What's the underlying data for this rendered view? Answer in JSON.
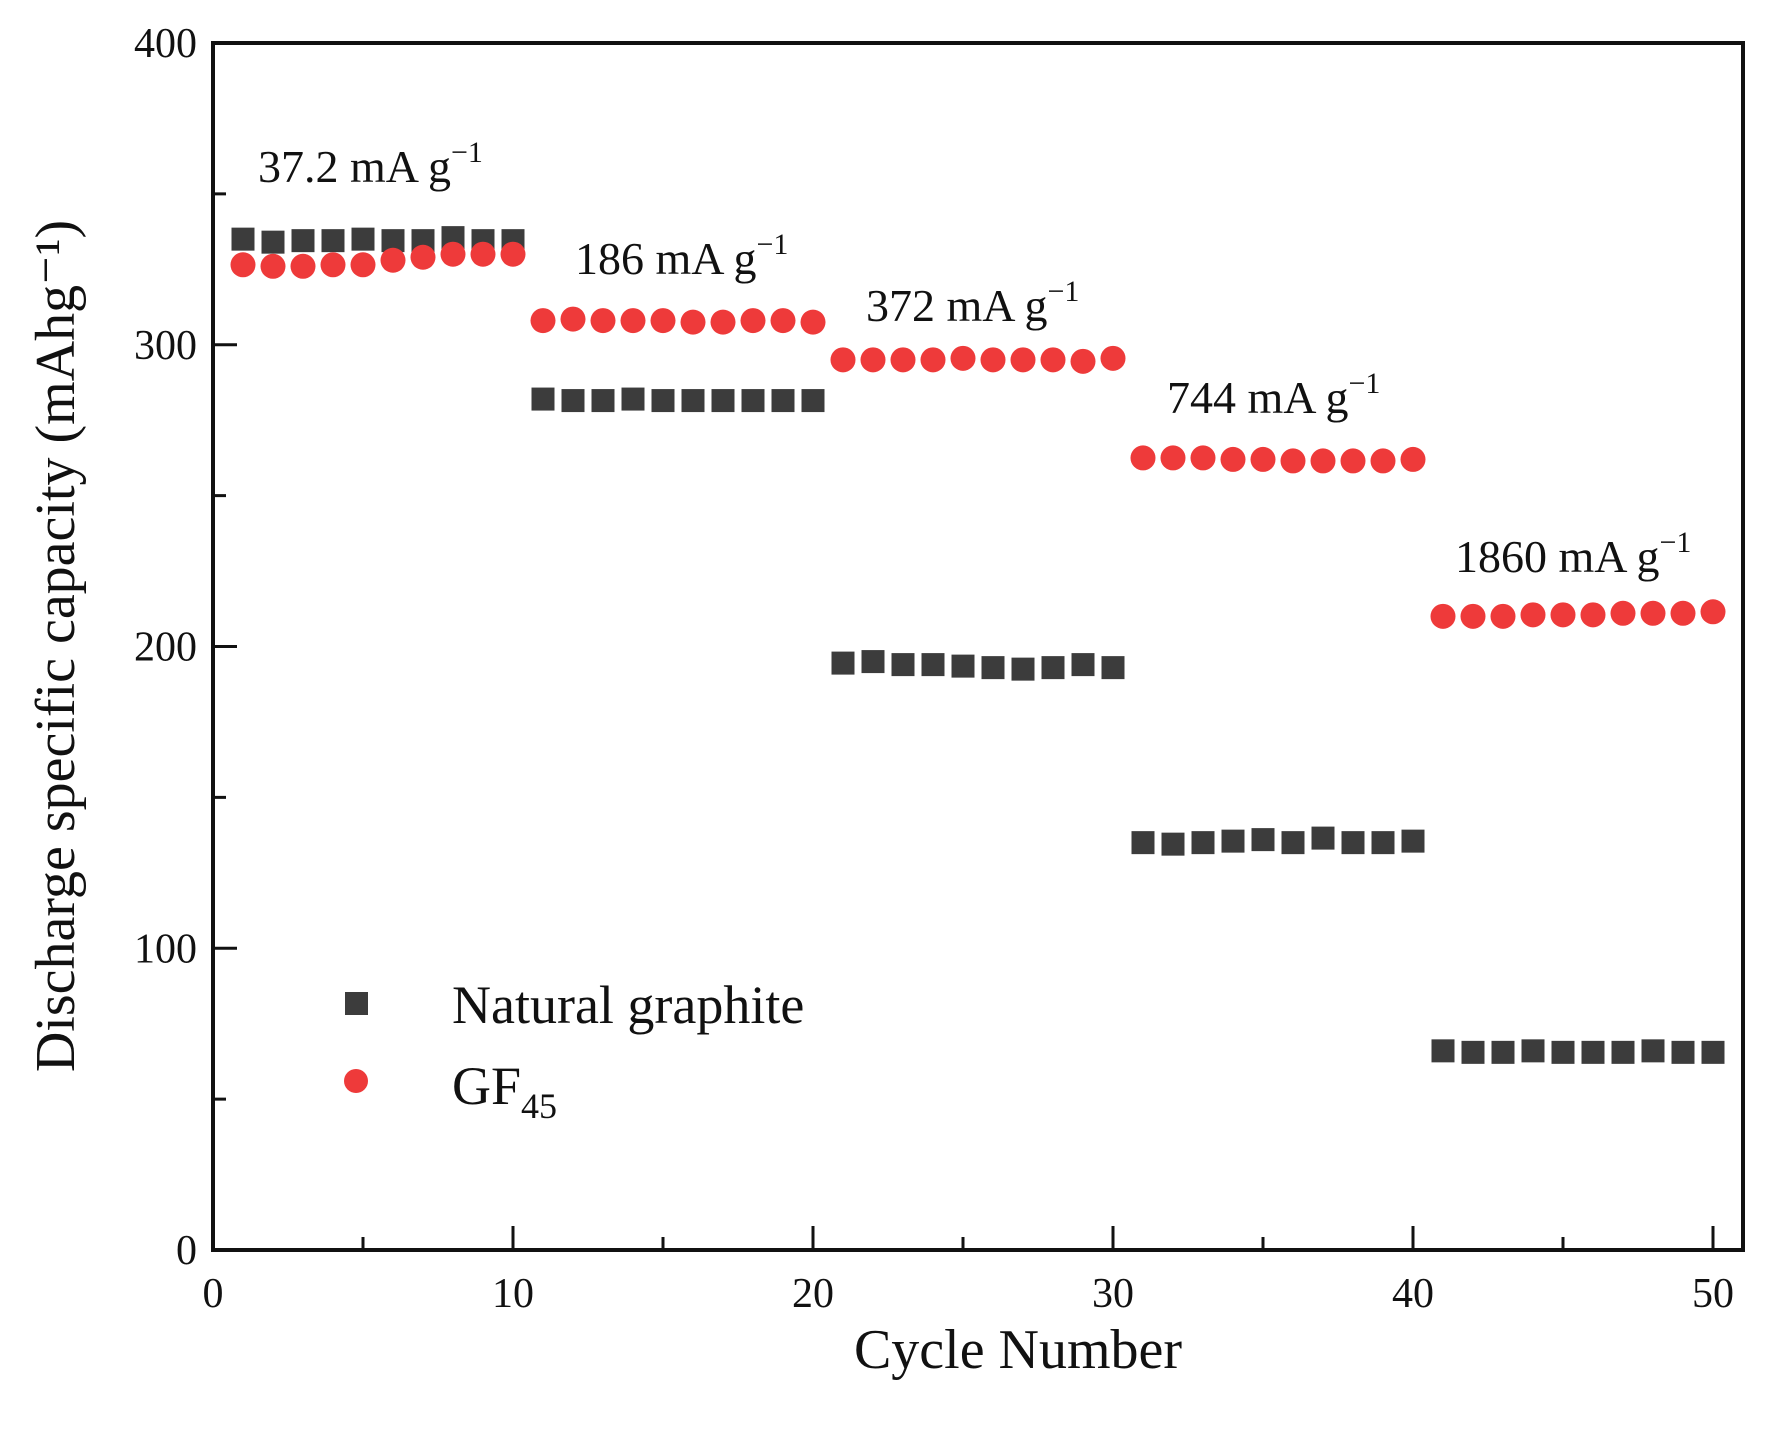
{
  "chart_data": {
    "type": "scatter",
    "xlabel": "Cycle Number",
    "ylabel": "Discharge specific capacity (mAhg⁻¹)",
    "xlim": [
      0,
      51
    ],
    "ylim": [
      0,
      400
    ],
    "x_ticks": [
      0,
      10,
      20,
      30,
      40,
      50
    ],
    "y_ticks": [
      0,
      100,
      200,
      300,
      400
    ],
    "legend_position": "bottom-left",
    "series": [
      {
        "name": "Natural graphite",
        "marker": "square",
        "color": "#3c3c3c",
        "x": [
          1,
          2,
          3,
          4,
          5,
          6,
          7,
          8,
          9,
          10,
          11,
          12,
          13,
          14,
          15,
          16,
          17,
          18,
          19,
          20,
          21,
          22,
          23,
          24,
          25,
          26,
          27,
          28,
          29,
          30,
          31,
          32,
          33,
          34,
          35,
          36,
          37,
          38,
          39,
          40,
          41,
          42,
          43,
          44,
          45,
          46,
          47,
          48,
          49,
          50
        ],
        "values": [
          335,
          334,
          334.5,
          334.5,
          335,
          334.5,
          334.5,
          335.5,
          334.5,
          334.5,
          282,
          281.5,
          281.5,
          282,
          281.5,
          281.5,
          281.5,
          281.5,
          281.5,
          281.5,
          194.5,
          195,
          194,
          194,
          193.5,
          193,
          192.5,
          193,
          194,
          193,
          135,
          134.5,
          135,
          135.5,
          136,
          135,
          136.5,
          135,
          135,
          135.5,
          66,
          65.5,
          65.5,
          66,
          65.5,
          65.5,
          65.5,
          66,
          65.5,
          65.5
        ]
      },
      {
        "name": "GF",
        "name_subscript": "45",
        "marker": "circle",
        "color": "#ee3a3a",
        "x": [
          1,
          2,
          3,
          4,
          5,
          6,
          7,
          8,
          9,
          10,
          11,
          12,
          13,
          14,
          15,
          16,
          17,
          18,
          19,
          20,
          21,
          22,
          23,
          24,
          25,
          26,
          27,
          28,
          29,
          30,
          31,
          32,
          33,
          34,
          35,
          36,
          37,
          38,
          39,
          40,
          41,
          42,
          43,
          44,
          45,
          46,
          47,
          48,
          49,
          50
        ],
        "values": [
          326.5,
          326,
          326,
          326.5,
          326.5,
          328,
          329,
          330,
          330,
          330,
          308,
          308.5,
          308,
          308,
          308,
          307.5,
          307.5,
          308,
          308,
          307.5,
          295,
          295,
          295,
          295,
          295.5,
          295,
          295,
          295,
          294.5,
          295.5,
          262.5,
          262.5,
          262.5,
          262,
          262,
          261.5,
          261.5,
          261.5,
          261.5,
          262,
          210,
          210,
          210,
          210.5,
          210.5,
          210.5,
          211,
          211,
          211,
          211.5
        ]
      }
    ],
    "annotations": [
      {
        "text": "37.2 mA g",
        "sup": "−1"
      },
      {
        "text": "186 mA g",
        "sup": "−1"
      },
      {
        "text": "372 mA g",
        "sup": "−1"
      },
      {
        "text": "744 mA g",
        "sup": "−1"
      },
      {
        "text": "1860 mA g",
        "sup": "−1"
      }
    ]
  }
}
